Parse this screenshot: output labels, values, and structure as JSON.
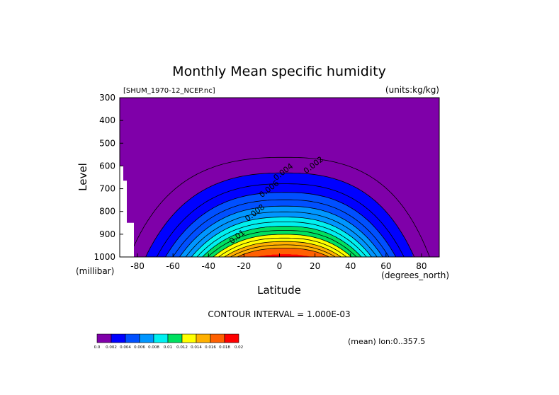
{
  "chart_data": {
    "type": "contour",
    "title": "Monthly Mean specific humidity",
    "file_label": "[SHUM_1970-12_NCEP.nc]",
    "units_label": "(units:kg/kg)",
    "xlabel": "Latitude",
    "ylabel": "Level",
    "x_unit_label": "(degrees_north)",
    "y_unit_label": "(millibar)",
    "xlim": [
      -90,
      90
    ],
    "ylim": [
      1000,
      300
    ],
    "x_ticks": [
      -80,
      -60,
      -40,
      -20,
      0,
      20,
      40,
      60,
      80
    ],
    "y_ticks": [
      300,
      400,
      500,
      600,
      700,
      800,
      900,
      1000
    ],
    "contour_interval_text": "CONTOUR INTERVAL = 1.000E-03",
    "mean_text": "(mean) lon:0..357.5",
    "contour_labels": [
      {
        "text": "0.002",
        "lat": 20,
        "lev": 605
      },
      {
        "text": "0.004",
        "lat": 3,
        "lev": 635
      },
      {
        "text": "0.006",
        "lat": -5,
        "lev": 710
      },
      {
        "text": "0.008",
        "lat": -13,
        "lev": 815
      },
      {
        "text": "0.01",
        "lat": -23,
        "lev": 920
      }
    ],
    "colorbar": {
      "levels": [
        0.0,
        0.002,
        0.004,
        0.006,
        0.008,
        0.01,
        0.012,
        0.014,
        0.016,
        0.018,
        0.02
      ],
      "labels": [
        "0.0",
        "0.002",
        "0.004",
        "0.006",
        "0.008",
        "0.01",
        "0.012",
        "0.014",
        "0.016",
        "0.018",
        "0.02"
      ],
      "colors": [
        "#7f00a9",
        "#0000ff",
        "#0050ff",
        "#0096ff",
        "#00f0f0",
        "#00e060",
        "#ffff00",
        "#ffb000",
        "#ff6000",
        "#ff0000"
      ]
    },
    "background_color": "#7f00a9",
    "missing_color": "#ffffff",
    "contour_line_levels": [
      0.001,
      0.002,
      0.003,
      0.004,
      0.005,
      0.006,
      0.007,
      0.008,
      0.009,
      0.01,
      0.011,
      0.012,
      0.013,
      0.014,
      0.015,
      0.016
    ]
  }
}
